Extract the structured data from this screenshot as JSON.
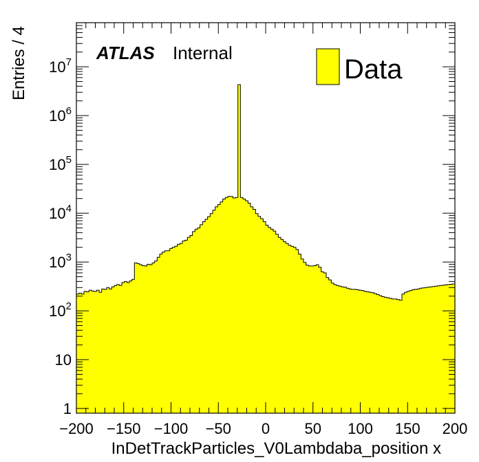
{
  "chart_data": {
    "type": "bar",
    "subtype": "histogram",
    "xlabel": "InDetTrackParticles_V0Lambdaba_position x",
    "ylabel": "Entries / 4",
    "xlim": [
      -200,
      200
    ],
    "ylim": [
      0.8,
      80000000
    ],
    "y_scale": "log",
    "bin_width": 4,
    "x_ticks": [
      -200,
      -150,
      -100,
      -50,
      0,
      50,
      100,
      150,
      200
    ],
    "x_tick_labels": [
      "−200",
      "−150",
      "−100",
      "−50",
      "0",
      "50",
      "100",
      "150",
      "200"
    ],
    "y_ticks": [
      {
        "value": 1,
        "base": "1",
        "exp": ""
      },
      {
        "value": 10,
        "base": "10",
        "exp": ""
      },
      {
        "value": 100,
        "base": "10",
        "exp": "2"
      },
      {
        "value": 1000,
        "base": "10",
        "exp": "3"
      },
      {
        "value": 10000,
        "base": "10",
        "exp": "4"
      },
      {
        "value": 100000,
        "base": "10",
        "exp": "5"
      },
      {
        "value": 1000000,
        "base": "10",
        "exp": "6"
      },
      {
        "value": 10000000,
        "base": "10",
        "exp": "7"
      }
    ],
    "experiment_label": "ATLAS",
    "status_label": "Internal",
    "legend_position": "top-right",
    "series": [
      {
        "name": "Data",
        "fill_color": "#ffff00",
        "line_color": "#000000",
        "values": [
          220,
          230,
          220,
          250,
          245,
          265,
          255,
          250,
          265,
          240,
          280,
          275,
          300,
          280,
          310,
          330,
          345,
          330,
          380,
          400,
          380,
          410,
          440,
          960,
          930,
          880,
          840,
          830,
          900,
          880,
          960,
          1050,
          1250,
          1450,
          1600,
          1700,
          1700,
          1900,
          2000,
          2100,
          2300,
          2400,
          2700,
          2800,
          3200,
          3500,
          4200,
          4700,
          5000,
          5800,
          6700,
          7500,
          8500,
          9800,
          11500,
          13500,
          15000,
          17000,
          19500,
          21000,
          22000,
          22000,
          20500,
          21000,
          4300000,
          21000,
          19500,
          18000,
          16000,
          13500,
          12000,
          9800,
          8600,
          7700,
          6700,
          5700,
          5100,
          4700,
          4300,
          3700,
          3200,
          2900,
          2600,
          2400,
          2200,
          2100,
          2000,
          1800,
          1450,
          1150,
          980,
          860,
          830,
          830,
          840,
          880,
          780,
          630,
          600,
          480,
          430,
          370,
          345,
          330,
          320,
          310,
          305,
          290,
          280,
          275,
          275,
          270,
          265,
          260,
          250,
          245,
          240,
          235,
          225,
          215,
          205,
          195,
          190,
          185,
          180,
          175,
          175,
          170,
          165,
          220,
          240,
          250,
          260,
          270,
          275,
          280,
          290,
          295,
          300,
          305,
          310,
          315,
          320,
          325,
          330,
          335,
          340,
          345,
          350,
          355
        ],
        "colors": {
          "fill": "#ffff00",
          "line": "#000000"
        }
      }
    ]
  }
}
